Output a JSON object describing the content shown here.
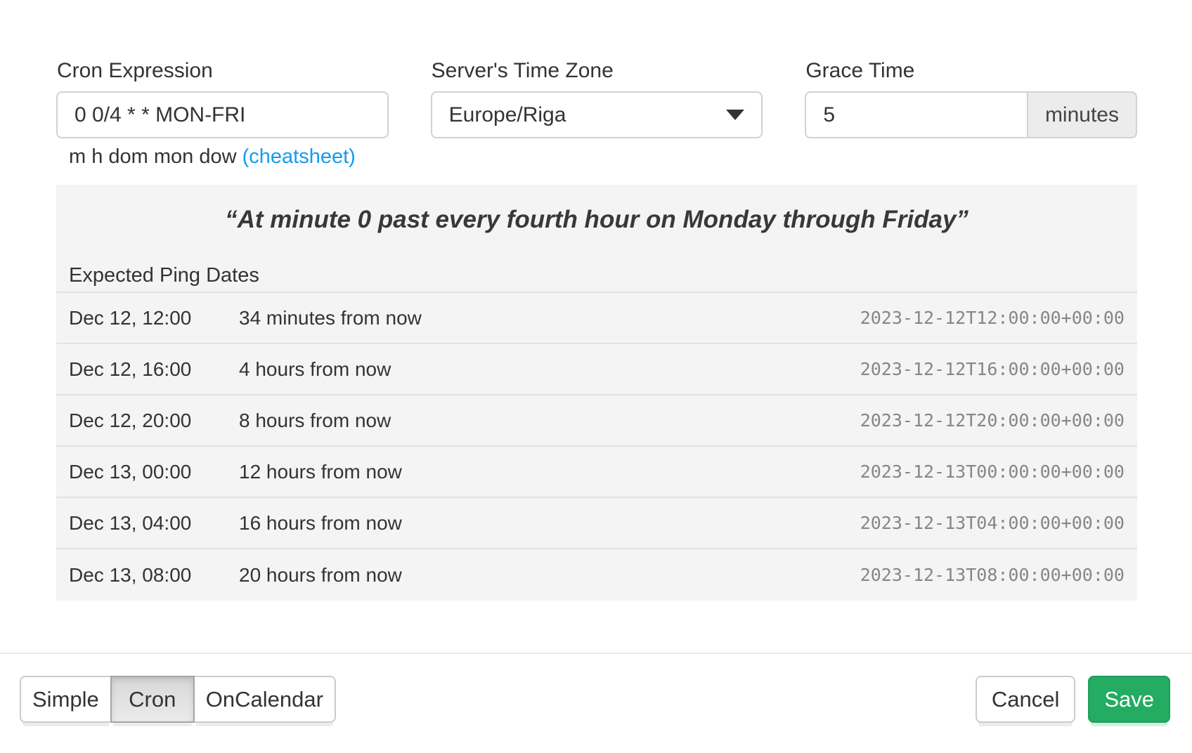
{
  "fields": {
    "cron": {
      "label": "Cron Expression",
      "value": "0 0/4 * * MON-FRI",
      "helper_text": "m h dom mon dow",
      "helper_link": "(cheatsheet)"
    },
    "timezone": {
      "label": "Server's Time Zone",
      "value": "Europe/Riga"
    },
    "grace": {
      "label": "Grace Time",
      "value": "5",
      "unit": "minutes"
    }
  },
  "preview": {
    "description": "“At minute 0 past every fourth hour on Monday through Friday”",
    "heading": "Expected Ping Dates",
    "rows": [
      {
        "date": "Dec 12, 12:00",
        "relative": "34 minutes from now",
        "iso": "2023-12-12T12:00:00+00:00"
      },
      {
        "date": "Dec 12, 16:00",
        "relative": "4 hours from now",
        "iso": "2023-12-12T16:00:00+00:00"
      },
      {
        "date": "Dec 12, 20:00",
        "relative": "8 hours from now",
        "iso": "2023-12-12T20:00:00+00:00"
      },
      {
        "date": "Dec 13, 00:00",
        "relative": "12 hours from now",
        "iso": "2023-12-13T00:00:00+00:00"
      },
      {
        "date": "Dec 13, 04:00",
        "relative": "16 hours from now",
        "iso": "2023-12-13T04:00:00+00:00"
      },
      {
        "date": "Dec 13, 08:00",
        "relative": "20 hours from now",
        "iso": "2023-12-13T08:00:00+00:00"
      }
    ]
  },
  "footer": {
    "modes": [
      {
        "label": "Simple",
        "active": false
      },
      {
        "label": "Cron",
        "active": true
      },
      {
        "label": "OnCalendar",
        "active": false
      }
    ],
    "cancel_label": "Cancel",
    "save_label": "Save"
  },
  "icons": {
    "timezone_caret": "chevron-down"
  },
  "colors": {
    "accent_green": "#23ac62",
    "link_blue": "#149bf0",
    "panel_bg": "#f4f4f4",
    "timestamp_gray": "#868686"
  }
}
